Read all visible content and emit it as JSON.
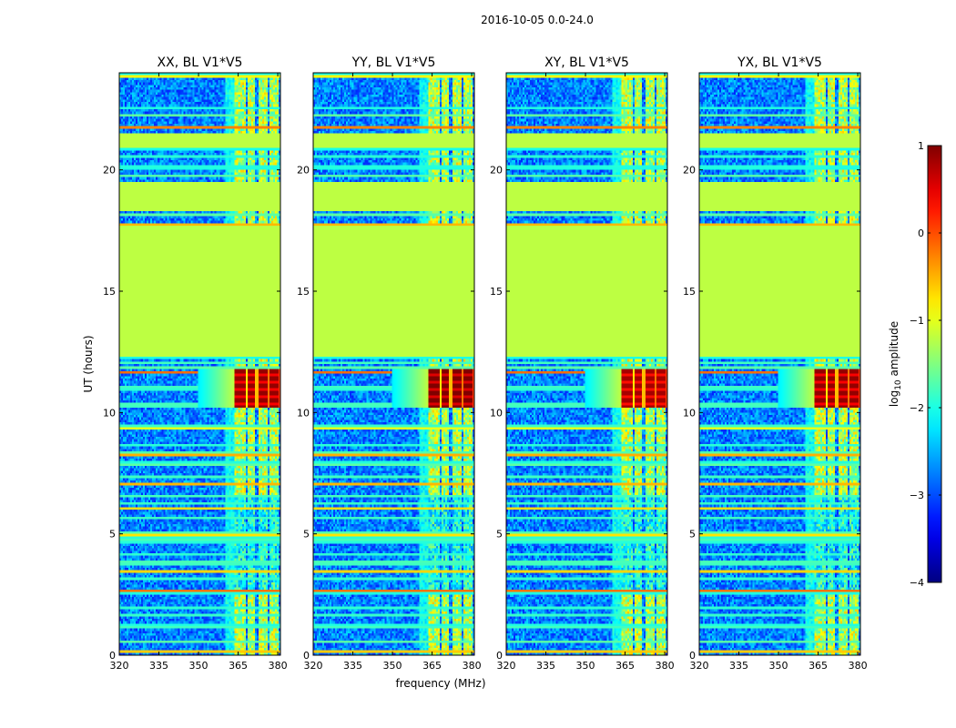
{
  "chart_data": {
    "type": "heatmap",
    "suptitle": "2016-10-05 0.0-24.0",
    "xlabel": "frequency (MHz)",
    "ylabel": "UT (hours)",
    "xlim": [
      320,
      381
    ],
    "ylim": [
      0,
      24
    ],
    "xticks": [
      320,
      335,
      350,
      365,
      380
    ],
    "yticks": [
      0,
      5,
      10,
      15,
      20
    ],
    "panels": [
      {
        "title": "XX, BL V1*V5",
        "strength": 1.0
      },
      {
        "title": "YY, BL V1*V5",
        "strength": 1.15
      },
      {
        "title": "XY, BL V1*V5",
        "strength": 0.9
      },
      {
        "title": "YX, BL V1*V5",
        "strength": 1.0
      }
    ],
    "colorbar": {
      "label": "log₁₀ amplitude",
      "label_base": "log",
      "label_sub": "10",
      "label_rest": " amplitude",
      "range": [
        -4,
        1
      ],
      "ticks": [
        1,
        0,
        -1,
        -2,
        -3,
        -4
      ],
      "tick_labels": [
        "1",
        "0",
        "−1",
        "−2",
        "−3",
        "−4"
      ],
      "colormap": "jet"
    },
    "flagged_value": -1.2,
    "flagged_ut_ranges": [
      [
        12.35,
        17.7
      ],
      [
        18.3,
        19.5
      ],
      [
        20.9,
        21.5
      ]
    ],
    "rfi_columns_mhz": [
      [
        360.0,
        364.0
      ],
      [
        364.0,
        367.5
      ],
      [
        368.5,
        371.5
      ],
      [
        372.5,
        376.0
      ],
      [
        377.0,
        380.0
      ]
    ],
    "bright_rfi_ut_range": [
      10.2,
      11.8
    ],
    "bright_rfi_peak": 0.9,
    "background_level": -3.2
  }
}
